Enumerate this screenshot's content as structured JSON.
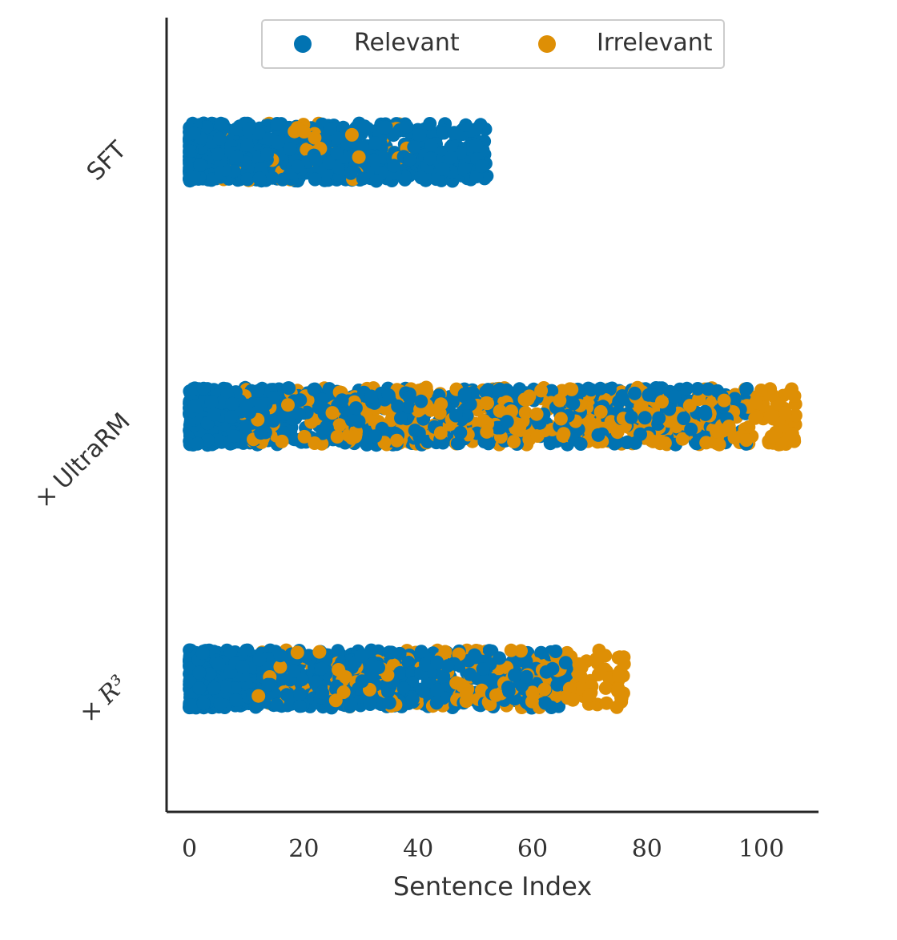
{
  "chart_data": {
    "type": "scatter",
    "style": "horizontal-strip-plot",
    "title": "",
    "xlabel": "Sentence Index",
    "ylabel": "",
    "xlim": [
      -4,
      110
    ],
    "x_ticks": [
      0,
      20,
      40,
      60,
      80,
      100
    ],
    "x_tick_labels": [
      "0",
      "20",
      "40",
      "60",
      "80",
      "100"
    ],
    "categories": [
      "SFT",
      "× UltraRM",
      "× R³"
    ],
    "category_labels": [
      {
        "prefix": "",
        "text": "SFT"
      },
      {
        "prefix": "×",
        "text": "UltraRM"
      },
      {
        "prefix": "×",
        "text": "R³"
      }
    ],
    "grid": false,
    "legend": {
      "placement": "top-center",
      "entries": [
        {
          "label": "Relevant",
          "color": "#0173b2"
        },
        {
          "label": "Irrelevant",
          "color": "#de8f05"
        }
      ]
    },
    "series": [
      {
        "name": "Relevant",
        "color": "#0173b2",
        "ranges": [
          {
            "category": "SFT",
            "min": 0,
            "max": 52
          },
          {
            "category": "× UltraRM",
            "min": 0,
            "max": 98
          },
          {
            "category": "× R³",
            "min": 0,
            "max": 66
          }
        ]
      },
      {
        "name": "Irrelevant",
        "color": "#de8f05",
        "ranges": [
          {
            "category": "SFT",
            "min": 5,
            "max": 38
          },
          {
            "category": "× UltraRM",
            "min": 8,
            "max": 106
          },
          {
            "category": "× R³",
            "min": 12,
            "max": 76
          }
        ]
      }
    ]
  }
}
